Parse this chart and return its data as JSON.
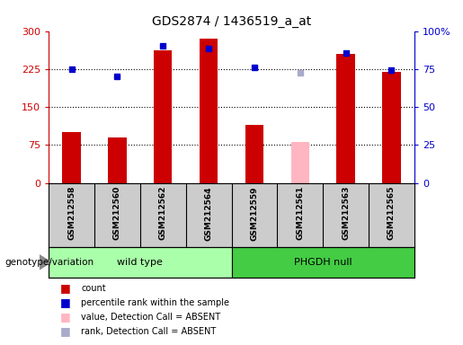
{
  "title": "GDS2874 / 1436519_a_at",
  "samples": [
    "GSM212558",
    "GSM212560",
    "GSM212562",
    "GSM212564",
    "GSM212559",
    "GSM212561",
    "GSM212563",
    "GSM212565"
  ],
  "bar_heights": [
    100,
    90,
    262,
    285,
    115,
    80,
    255,
    220
  ],
  "bar_colors": [
    "#cc0000",
    "#cc0000",
    "#cc0000",
    "#cc0000",
    "#cc0000",
    "#ffb6c1",
    "#cc0000",
    "#cc0000"
  ],
  "dot_values_left": [
    225,
    210,
    270,
    265,
    228,
    218,
    257,
    222
  ],
  "dot_colors": [
    "#0000cc",
    "#0000cc",
    "#0000cc",
    "#0000cc",
    "#0000cc",
    "#aaaacc",
    "#0000cc",
    "#0000cc"
  ],
  "groups": [
    {
      "label": "wild type",
      "start": 0,
      "end": 3,
      "color": "#aaffaa"
    },
    {
      "label": "PHGDH null",
      "start": 4,
      "end": 7,
      "color": "#44cc44"
    }
  ],
  "ylim_left": [
    0,
    300
  ],
  "ylim_right": [
    0,
    100
  ],
  "yticks_left": [
    0,
    75,
    150,
    225,
    300
  ],
  "yticks_right": [
    0,
    25,
    50,
    75,
    100
  ],
  "ytick_labels_left": [
    "0",
    "75",
    "150",
    "225",
    "300"
  ],
  "ytick_labels_right": [
    "0",
    "25",
    "50",
    "75",
    "100%"
  ],
  "hlines": [
    75,
    150,
    225
  ],
  "left_axis_color": "#cc0000",
  "right_axis_color": "#0000cc",
  "genotype_label": "genotype/variation",
  "legend_items": [
    {
      "label": "count",
      "color": "#cc0000"
    },
    {
      "label": "percentile rank within the sample",
      "color": "#0000cc"
    },
    {
      "label": "value, Detection Call = ABSENT",
      "color": "#ffb6c1"
    },
    {
      "label": "rank, Detection Call = ABSENT",
      "color": "#aaaacc"
    }
  ],
  "bar_width": 0.4,
  "n_samples": 8
}
